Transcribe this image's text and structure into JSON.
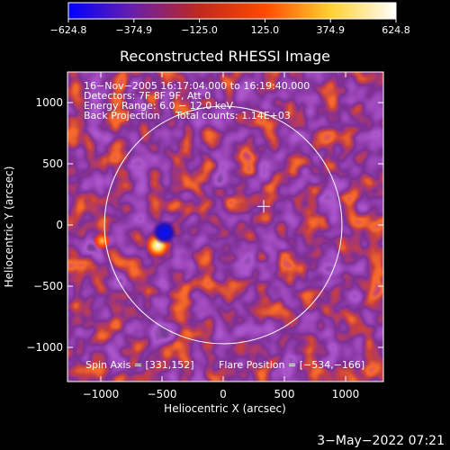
{
  "chart_data": {
    "type": "heatmap",
    "title": "Reconstructed RHESSI Image",
    "xlabel": "Heliocentric X (arcsec)",
    "ylabel": "Heliocentric Y (arcsec)",
    "xlim": [
      -1300,
      1300
    ],
    "ylim": [
      -1300,
      1300
    ],
    "x_ticks": [
      -1000,
      -500,
      0,
      500,
      1000
    ],
    "x_tick_labels": [
      "−1000",
      "−500",
      "0",
      "500",
      "1000"
    ],
    "y_ticks": [
      -1000,
      -500,
      0,
      500,
      1000
    ],
    "y_tick_labels": [
      "−1000",
      "−500",
      "0",
      "500",
      "1000"
    ],
    "colorbar": {
      "min": -624.8,
      "max": 624.8,
      "tick_values": [
        -624.8,
        -374.9,
        -125.0,
        125.0,
        374.9,
        624.8
      ],
      "tick_labels": [
        "−624.8",
        "−374.9",
        "−125.0",
        "125.0",
        "374.9",
        "624.8"
      ],
      "colors": [
        "#0000ff",
        "#6a1fa8",
        "#c0281e",
        "#ff4a00",
        "#ffd030",
        "#ffffff"
      ]
    },
    "annotations": [
      "16−Nov−2005 16:17:04.000 to 16:19:40.000",
      "Detectors: 7F 8F 9F, Att 0",
      "Energy Range: 6.0 − 12.0 keV",
      "Back Projection     Total counts: 1.14E+03"
    ],
    "footer_left": "Spin Axis = [331,152]",
    "footer_right": "Flare Position = [−534,−166]",
    "solar_disk": {
      "center": [
        0,
        0
      ],
      "radius": 970
    },
    "sun_center_marker": [
      331,
      152
    ],
    "bright_sources": [
      {
        "x": -534,
        "y": -166,
        "value": 624.8
      },
      {
        "x": -990,
        "y": -130,
        "value": 430
      },
      {
        "x": -480,
        "y": -60,
        "value": -624.8
      }
    ]
  },
  "timestamp": "3−May−2022 07:21"
}
